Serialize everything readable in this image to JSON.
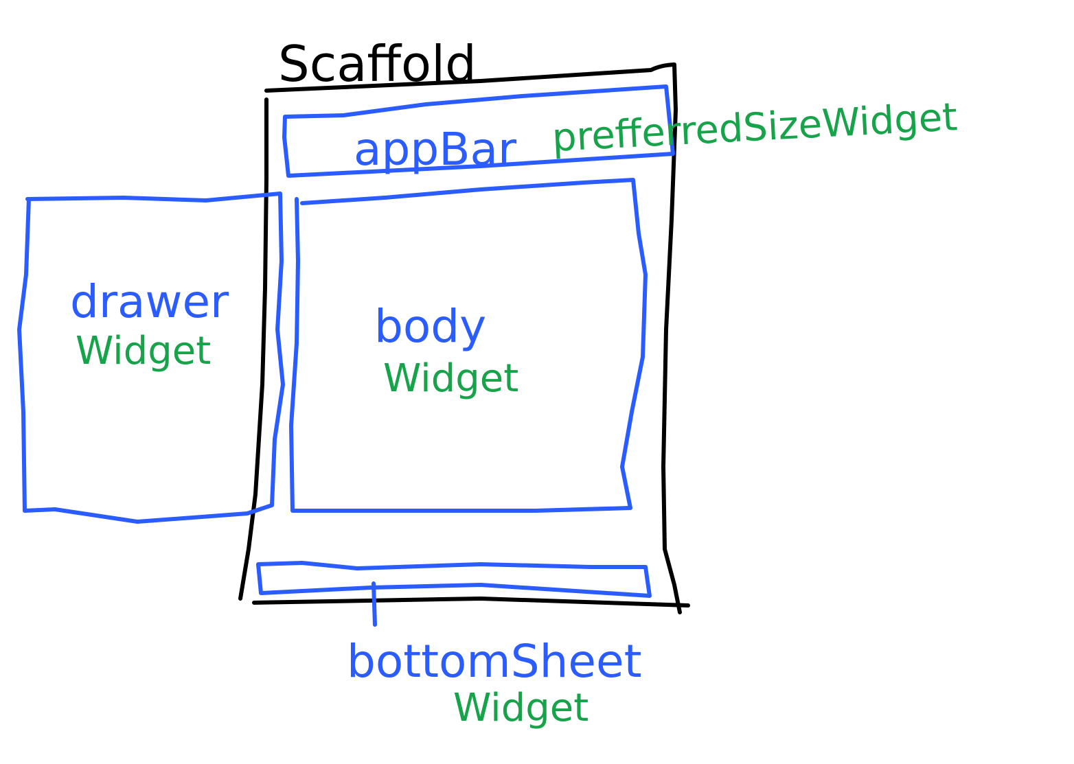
{
  "colors": {
    "scaffold": "#000000",
    "widget_box": "#2a5cff",
    "widget_type": "#17a34a",
    "background": "#ffffff"
  },
  "scaffold": {
    "label": "Scaffold"
  },
  "app_bar": {
    "label": "appBar",
    "type_label": "prefferredSizeWidget"
  },
  "drawer": {
    "label": "drawer",
    "type_label": "Widget"
  },
  "body": {
    "label": "body",
    "type_label": "Widget"
  },
  "bottom_sheet": {
    "label": "bottomSheet",
    "type_label": "Widget"
  }
}
